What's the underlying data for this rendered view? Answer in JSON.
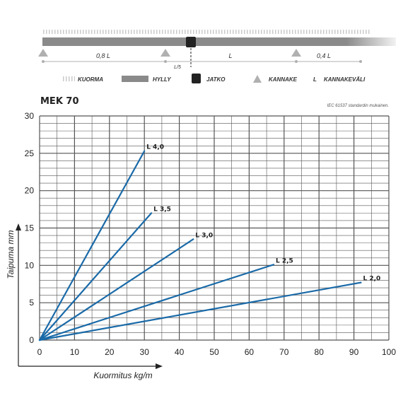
{
  "colors": {
    "series_line": "#1a6aa8",
    "grid": "#555555",
    "shelf": "#8a8a8a",
    "connector": "#222222",
    "bracket": "#b0b0b0",
    "load": "#bdbdbd"
  },
  "diagram": {
    "span_left": "0,8 L",
    "span_mid": "L",
    "span_right": "0,4 L",
    "connector_offset": "L/5"
  },
  "legend": [
    {
      "key": "load",
      "icon": "load-hatch-icon",
      "label": "KUORMA"
    },
    {
      "key": "shelf",
      "icon": "shelf-bar-icon",
      "label": "HYLLY"
    },
    {
      "key": "connector",
      "icon": "connector-square-icon",
      "label": "JATKO"
    },
    {
      "key": "bracket",
      "icon": "bracket-triangle-icon",
      "label": "KANNAKE"
    },
    {
      "key": "span",
      "icon": "",
      "symbol": "L",
      "label": "KANNAKEVÄLI"
    }
  ],
  "chart_title": "MEK 70",
  "standard_note": "IEC 61537 standardin mukainen.",
  "chart_data": {
    "type": "line",
    "title": "MEK 70",
    "xlabel": "Kuormitus kg/m",
    "ylabel": "Taipuma mm",
    "xlim": [
      0,
      100
    ],
    "ylim": [
      0,
      30
    ],
    "x_ticks": [
      0,
      10,
      20,
      30,
      40,
      50,
      60,
      70,
      80,
      90,
      100
    ],
    "y_ticks": [
      0,
      5,
      10,
      15,
      20,
      25,
      30
    ],
    "grid": true,
    "series": [
      {
        "name": "L 4,0",
        "points": [
          [
            0,
            0
          ],
          [
            30,
            25.3
          ]
        ]
      },
      {
        "name": "L 3,5",
        "points": [
          [
            0,
            0
          ],
          [
            32,
            17.0
          ]
        ]
      },
      {
        "name": "L 3,0",
        "points": [
          [
            0,
            0
          ],
          [
            44,
            13.5
          ]
        ]
      },
      {
        "name": "L 2,5",
        "points": [
          [
            0,
            0
          ],
          [
            67,
            10.1
          ]
        ]
      },
      {
        "name": "L 2,0",
        "points": [
          [
            0,
            0
          ],
          [
            92,
            7.7
          ]
        ]
      }
    ]
  }
}
